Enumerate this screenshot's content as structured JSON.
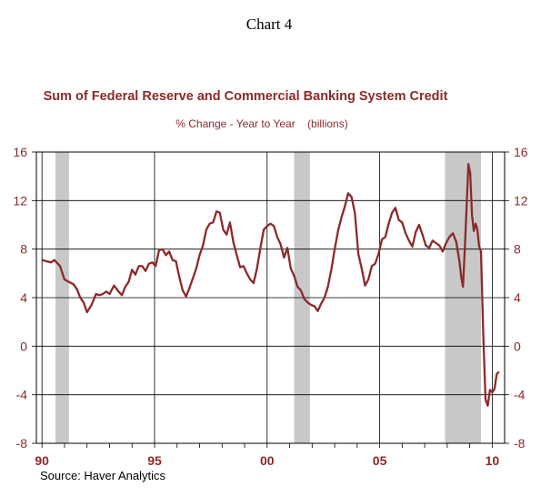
{
  "chart_number": "Chart 4",
  "source": "Source: Haver Analytics",
  "chart_data": {
    "type": "line",
    "title": "Sum of Federal Reserve and Commercial Banking System Credit",
    "subtitle": "% Change - Year to Year    (billions)",
    "xlim": [
      1989.75,
      2010.55
    ],
    "ylim": [
      -8,
      16
    ],
    "y_ticks": [
      16,
      12,
      8,
      4,
      0,
      -4,
      -8
    ],
    "y_tick_labels": [
      "16",
      "12",
      "8",
      "4",
      "0",
      "-4",
      "-8"
    ],
    "x_ticks": [
      1990,
      1995,
      2000,
      2005,
      2010
    ],
    "x_tick_labels": [
      "90",
      "95",
      "00",
      "05",
      "10"
    ],
    "grid": "horizontal and at labeled years",
    "recessions": [
      [
        1990.6,
        1991.2
      ],
      [
        2001.2,
        2001.9
      ],
      [
        2007.9,
        2009.5
      ]
    ],
    "colors": {
      "line": "#8b2a2a",
      "recession": "#c8c8c8",
      "text": "#8b2a2a"
    },
    "series": [
      {
        "x": [
          1990.0,
          1990.2,
          1990.4,
          1990.55,
          1990.8,
          1991.0,
          1991.2,
          1991.4,
          1991.55,
          1991.7,
          1991.85,
          1992.0,
          1992.2,
          1992.4,
          1992.55,
          1992.7,
          1992.85,
          1993.0,
          1993.2,
          1993.4,
          1993.55,
          1993.7,
          1993.85,
          1994.0,
          1994.15,
          1994.3,
          1994.45,
          1994.6,
          1994.75,
          1994.9,
          1995.05,
          1995.2,
          1995.35,
          1995.5,
          1995.65,
          1995.8,
          1995.95,
          1996.1,
          1996.25,
          1996.4,
          1996.55,
          1996.7,
          1996.85,
          1997.0,
          1997.15,
          1997.3,
          1997.45,
          1997.6,
          1997.75,
          1997.9,
          1998.05,
          1998.2,
          1998.35,
          1998.5,
          1998.65,
          1998.8,
          1998.95,
          1999.1,
          1999.25,
          1999.4,
          1999.55,
          1999.7,
          1999.85,
          2000.0,
          2000.15,
          2000.3,
          2000.45,
          2000.6,
          2000.75,
          2000.9,
          2001.05,
          2001.2,
          2001.35,
          2001.5,
          2001.65,
          2001.8,
          2001.95,
          2002.1,
          2002.25,
          2002.4,
          2002.55,
          2002.7,
          2002.85,
          2003.0,
          2003.15,
          2003.3,
          2003.45,
          2003.6,
          2003.75,
          2003.9,
          2004.05,
          2004.2,
          2004.35,
          2004.5,
          2004.65,
          2004.8,
          2004.95,
          2005.1,
          2005.25,
          2005.4,
          2005.55,
          2005.7,
          2005.85,
          2006.0,
          2006.15,
          2006.3,
          2006.45,
          2006.6,
          2006.75,
          2006.9,
          2007.05,
          2007.2,
          2007.35,
          2007.5,
          2007.65,
          2007.8,
          2007.95,
          2008.1,
          2008.25,
          2008.4,
          2008.55,
          2008.62,
          2008.7,
          2008.78,
          2008.86,
          2008.94,
          2009.02,
          2009.1,
          2009.18,
          2009.26,
          2009.34,
          2009.42,
          2009.5,
          2009.6,
          2009.7,
          2009.8,
          2009.9,
          2010.0,
          2010.1,
          2010.2,
          2010.3
        ],
        "values": [
          7.1,
          7.0,
          6.9,
          7.1,
          6.6,
          5.5,
          5.3,
          5.1,
          4.7,
          4.0,
          3.6,
          2.8,
          3.4,
          4.3,
          4.2,
          4.3,
          4.5,
          4.3,
          5.0,
          4.5,
          4.2,
          4.9,
          5.3,
          6.3,
          5.9,
          6.6,
          6.6,
          6.2,
          6.8,
          6.9,
          6.6,
          7.9,
          8.0,
          7.5,
          7.8,
          7.1,
          7.0,
          5.7,
          4.6,
          4.1,
          4.8,
          5.6,
          6.4,
          7.5,
          8.3,
          9.6,
          10.1,
          10.2,
          11.1,
          11.0,
          9.6,
          9.2,
          10.2,
          8.6,
          7.5,
          6.5,
          6.6,
          6.0,
          5.5,
          5.2,
          6.4,
          8.1,
          9.6,
          9.9,
          10.1,
          9.9,
          9.0,
          8.4,
          7.3,
          8.1,
          6.4,
          5.8,
          4.9,
          4.6,
          3.9,
          3.6,
          3.4,
          3.3,
          2.9,
          3.5,
          4.0,
          4.9,
          6.3,
          8.0,
          9.5,
          10.6,
          11.5,
          12.6,
          12.3,
          11.0,
          7.6,
          6.4,
          5.0,
          5.5,
          6.6,
          6.8,
          7.6,
          8.8,
          9.0,
          10.1,
          11.0,
          11.4,
          10.4,
          10.2,
          9.3,
          8.7,
          8.2,
          9.4,
          10.0,
          9.2,
          8.3,
          8.1,
          8.7,
          8.5,
          8.3,
          7.8,
          8.5,
          9.0,
          9.3,
          8.6,
          6.9,
          5.7,
          4.9,
          8.0,
          11.5,
          15.0,
          14.3,
          10.8,
          9.5,
          10.1,
          9.6,
          8.2,
          7.8,
          1.0,
          -4.4,
          -4.9,
          -3.6,
          -3.8,
          -3.5,
          -2.3,
          -2.1
        ]
      }
    ]
  }
}
